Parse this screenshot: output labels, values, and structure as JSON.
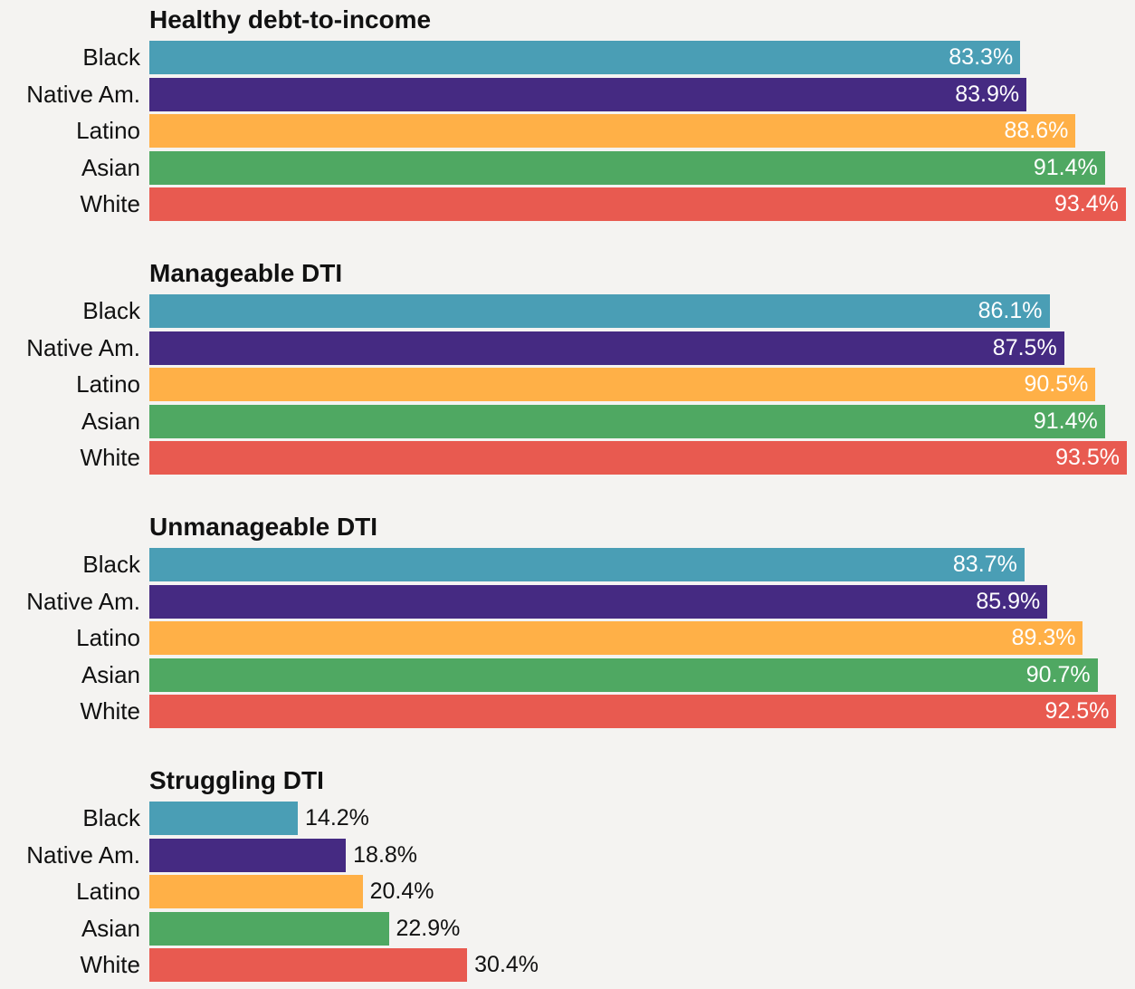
{
  "chart_data": [
    {
      "type": "bar",
      "orientation": "horizontal",
      "title": "Healthy debt-to-income",
      "categories": [
        "Black",
        "Native Am.",
        "Latino",
        "Asian",
        "White"
      ],
      "values": [
        83.3,
        83.9,
        88.6,
        91.4,
        93.4
      ],
      "value_labels": [
        "83.3%",
        "83.9%",
        "88.6%",
        "91.4%",
        "93.4%"
      ],
      "label_position": "inside",
      "xlim": [
        0,
        93.5
      ]
    },
    {
      "type": "bar",
      "orientation": "horizontal",
      "title": "Manageable DTI",
      "categories": [
        "Black",
        "Native Am.",
        "Latino",
        "Asian",
        "White"
      ],
      "values": [
        86.1,
        87.5,
        90.5,
        91.4,
        93.5
      ],
      "value_labels": [
        "86.1%",
        "87.5%",
        "90.5%",
        "91.4%",
        "93.5%"
      ],
      "label_position": "inside",
      "xlim": [
        0,
        93.5
      ]
    },
    {
      "type": "bar",
      "orientation": "horizontal",
      "title": "Unmanageable DTI",
      "categories": [
        "Black",
        "Native Am.",
        "Latino",
        "Asian",
        "White"
      ],
      "values": [
        83.7,
        85.9,
        89.3,
        90.7,
        92.5
      ],
      "value_labels": [
        "83.7%",
        "85.9%",
        "89.3%",
        "90.7%",
        "92.5%"
      ],
      "label_position": "inside",
      "xlim": [
        0,
        93.5
      ]
    },
    {
      "type": "bar",
      "orientation": "horizontal",
      "title": "Struggling DTI",
      "categories": [
        "Black",
        "Native Am.",
        "Latino",
        "Asian",
        "White"
      ],
      "values": [
        14.2,
        18.8,
        20.4,
        22.9,
        30.4
      ],
      "value_labels": [
        "14.2%",
        "18.8%",
        "20.4%",
        "22.9%",
        "30.4%"
      ],
      "label_position": "outside",
      "xlim": [
        0,
        93.5
      ]
    }
  ],
  "category_colors": {
    "Black": "#4a9eb5",
    "Native Am.": "#452a82",
    "Latino": "#ffb047",
    "Asian": "#4fa862",
    "White": "#e85a50"
  },
  "background_color": "#f4f3f1"
}
